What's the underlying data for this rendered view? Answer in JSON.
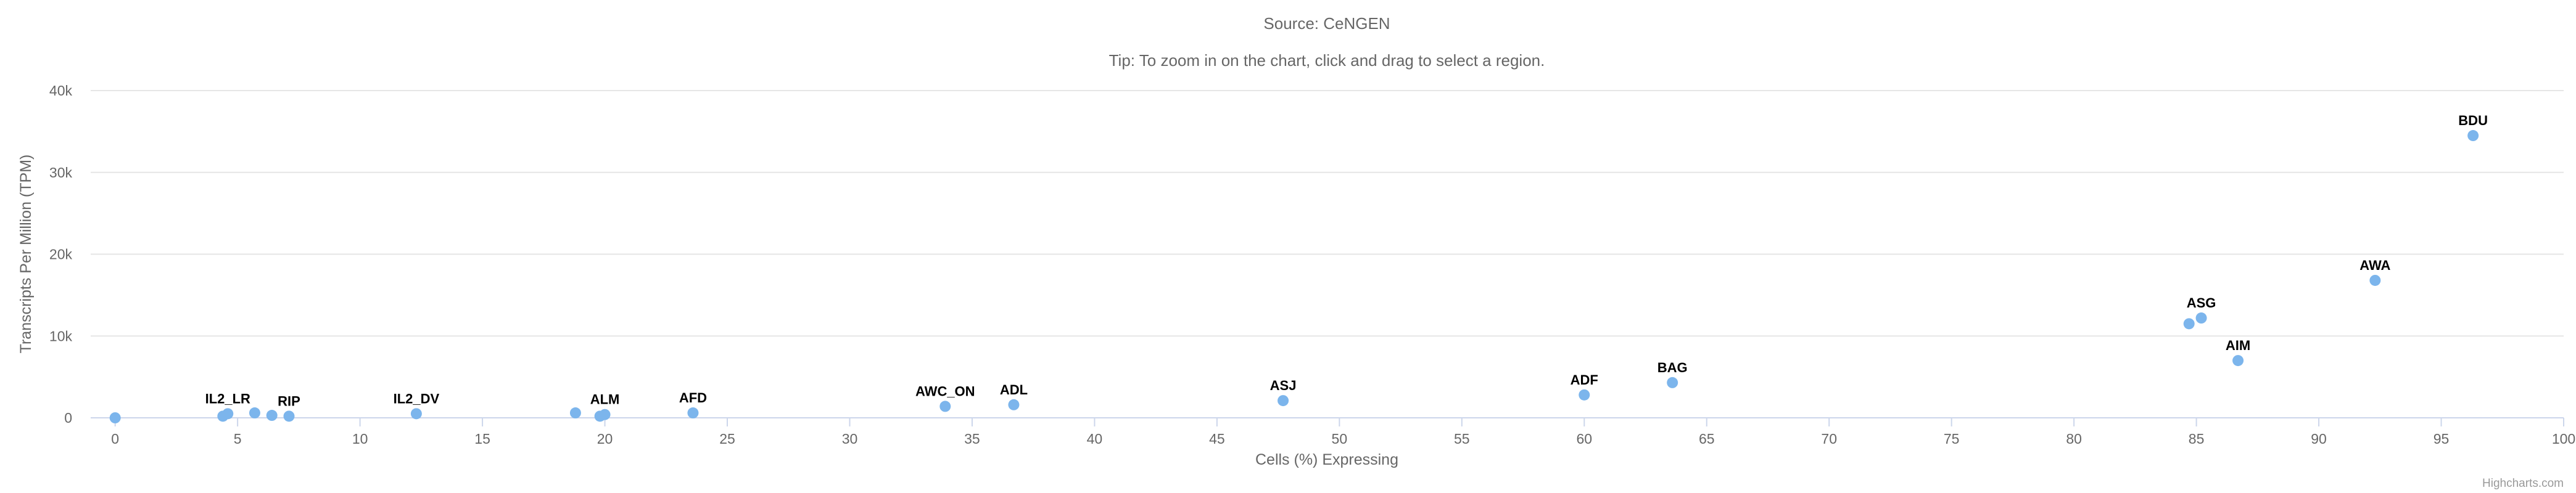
{
  "header": {
    "source": "Source: CeNGEN",
    "tip": "Tip: To zoom in on the chart, click and drag to select a region."
  },
  "credits": "Highcharts.com",
  "chart_data": {
    "type": "scatter",
    "title": "",
    "xlabel": "Cells (%) Expressing",
    "ylabel": "Transcripts Per Million (TPM)",
    "xlim": [
      -1,
      100
    ],
    "ylim": [
      0,
      40000
    ],
    "x_ticks": [
      "0",
      "5",
      "10",
      "15",
      "20",
      "25",
      "30",
      "35",
      "40",
      "45",
      "50",
      "55",
      "60",
      "65",
      "70",
      "75",
      "80",
      "85",
      "90",
      "95",
      "100"
    ],
    "y_ticks": [
      "0",
      "10k",
      "20k",
      "30k",
      "40k"
    ],
    "grid": true,
    "legend": false,
    "color": "#7cb5ec",
    "points": [
      {
        "x": 0,
        "y": 0,
        "label": ""
      },
      {
        "x": 4.4,
        "y": 200,
        "label": ""
      },
      {
        "x": 4.6,
        "y": 500,
        "label": "IL2_LR"
      },
      {
        "x": 5.7,
        "y": 600,
        "label": ""
      },
      {
        "x": 6.4,
        "y": 300,
        "label": ""
      },
      {
        "x": 7.1,
        "y": 200,
        "label": "RIP"
      },
      {
        "x": 12.3,
        "y": 500,
        "label": "IL2_DV"
      },
      {
        "x": 18.8,
        "y": 600,
        "label": ""
      },
      {
        "x": 19.8,
        "y": 200,
        "label": ""
      },
      {
        "x": 20.0,
        "y": 400,
        "label": "ALM"
      },
      {
        "x": 23.6,
        "y": 600,
        "label": "AFD"
      },
      {
        "x": 33.9,
        "y": 1400,
        "label": "AWC_ON"
      },
      {
        "x": 36.7,
        "y": 1600,
        "label": "ADL"
      },
      {
        "x": 47.7,
        "y": 2100,
        "label": "ASJ"
      },
      {
        "x": 60.0,
        "y": 2800,
        "label": "ADF"
      },
      {
        "x": 63.6,
        "y": 4300,
        "label": "BAG"
      },
      {
        "x": 84.7,
        "y": 11500,
        "label": ""
      },
      {
        "x": 85.2,
        "y": 12200,
        "label": "ASG"
      },
      {
        "x": 86.7,
        "y": 7000,
        "label": "AIM"
      },
      {
        "x": 92.3,
        "y": 16800,
        "label": "AWA"
      },
      {
        "x": 96.3,
        "y": 34500,
        "label": "BDU"
      }
    ]
  }
}
